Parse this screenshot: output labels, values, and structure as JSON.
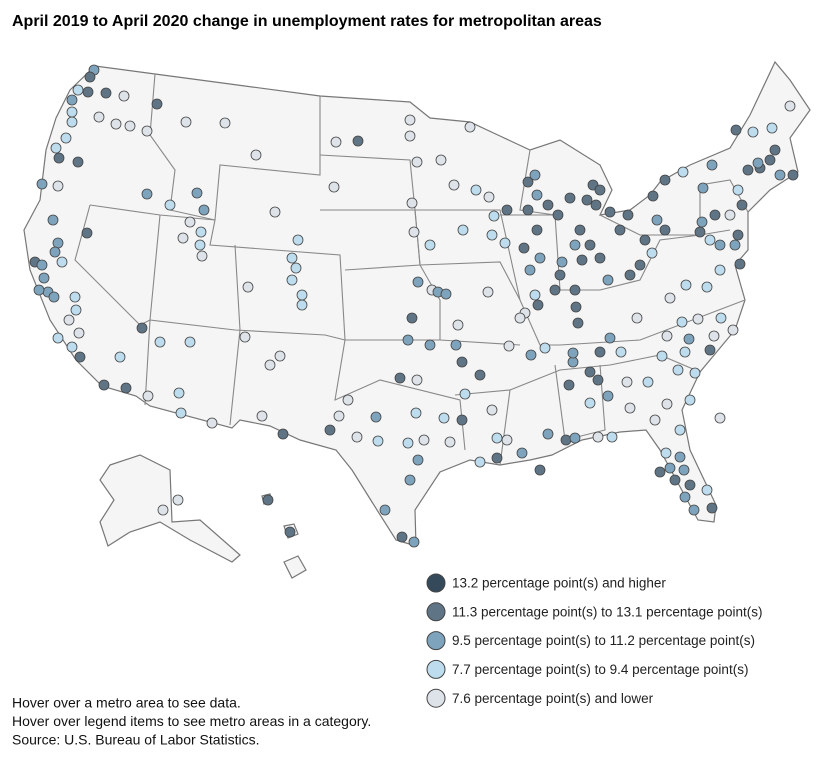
{
  "title": "April 2019 to April 2020 change in unemployment rates for metropolitan areas",
  "legend": {
    "items": [
      {
        "label": "13.2 percentage point(s) and higher",
        "color": "#34495a"
      },
      {
        "label": "11.3 percentage point(s) to 13.1 percentage point(s)",
        "color": "#5f7485"
      },
      {
        "label": "9.5 percentage point(s) to 11.2 percentage point(s)",
        "color": "#7ea3bc"
      },
      {
        "label": "7.7 percentage point(s) to 9.4 percentage point(s)",
        "color": "#bddced"
      },
      {
        "label": "7.6 percentage point(s) and lower",
        "color": "#dde3e9"
      }
    ]
  },
  "notes": [
    "Hover over a metro area to see data.",
    "Hover over legend items to see metro areas in a category.",
    "Source: U.S. Bureau of Labor Statistics."
  ]
}
